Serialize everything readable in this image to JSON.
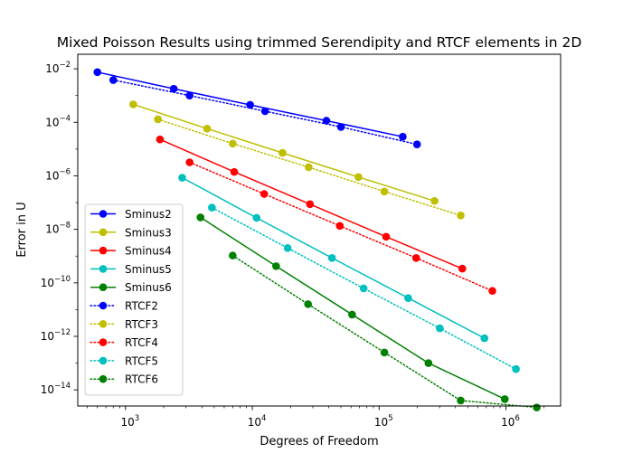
{
  "chart_data": {
    "type": "line",
    "title": "Mixed Poisson Results using trimmed Serendipity and RTCF elements in 2D",
    "xlabel": "Degrees of Freedom",
    "ylabel": "Error in U",
    "xscale": "log",
    "yscale": "log",
    "xlim": [
      420,
      2700000
    ],
    "ylim": [
      2.5e-15,
      0.035
    ],
    "x_ticks": [
      {
        "value": 1000,
        "base": "10",
        "exp": "3"
      },
      {
        "value": 10000,
        "base": "10",
        "exp": "4"
      },
      {
        "value": 100000,
        "base": "10",
        "exp": "5"
      },
      {
        "value": 1000000,
        "base": "10",
        "exp": "6"
      }
    ],
    "y_ticks": [
      {
        "value": 0.01,
        "base": "10",
        "exp": "−2"
      },
      {
        "value": 0.0001,
        "base": "10",
        "exp": "−4"
      },
      {
        "value": 1e-06,
        "base": "10",
        "exp": "−6"
      },
      {
        "value": 1e-08,
        "base": "10",
        "exp": "−8"
      },
      {
        "value": 1e-10,
        "base": "10",
        "exp": "−10"
      },
      {
        "value": 1e-12,
        "base": "10",
        "exp": "−12"
      },
      {
        "value": 1e-14,
        "base": "10",
        "exp": "−14"
      }
    ],
    "grid": false,
    "legend": "lower-left",
    "series": [
      {
        "name": "Sminus2",
        "color": "#0000ff",
        "style": "solid",
        "x": [
          600,
          2400,
          9600,
          38400,
          153600
        ],
        "y": [
          0.0075,
          0.0018,
          0.00045,
          0.000115,
          2.9e-05
        ]
      },
      {
        "name": "Sminus3",
        "color": "#bfbf00",
        "style": "solid",
        "x": [
          1150,
          4400,
          17300,
          68700,
          273600
        ],
        "y": [
          0.00047,
          5.8e-05,
          7.2e-06,
          9e-07,
          1.15e-07
        ]
      },
      {
        "name": "Sminus4",
        "color": "#ff0000",
        "style": "solid",
        "x": [
          1870,
          7200,
          28500,
          113600,
          453000
        ],
        "y": [
          2.3e-05,
          1.4e-06,
          8.7e-08,
          5.3e-09,
          3.4e-10
        ]
      },
      {
        "name": "Sminus5",
        "color": "#00bfbf",
        "style": "solid",
        "x": [
          2800,
          10800,
          42500,
          169500,
          677000
        ],
        "y": [
          8.5e-07,
          2.7e-08,
          8.5e-10,
          2.7e-11,
          8.5e-13
        ]
      },
      {
        "name": "Sminus6",
        "color": "#008000",
        "style": "solid",
        "x": [
          3900,
          15400,
          61200,
          245000,
          980000
        ],
        "y": [
          2.8e-08,
          4.2e-10,
          6.5e-12,
          1e-13,
          4.5e-15
        ]
      },
      {
        "name": "RTCF2",
        "color": "#0000ff",
        "style": "dotted",
        "x": [
          800,
          3200,
          12600,
          50000,
          199000
        ],
        "y": [
          0.0038,
          0.001,
          0.00026,
          6.7e-05,
          1.5e-05
        ]
      },
      {
        "name": "RTCF3",
        "color": "#bfbf00",
        "style": "dotted",
        "x": [
          1800,
          7000,
          27800,
          110000,
          440000
        ],
        "y": [
          0.00013,
          1.6e-05,
          2.1e-06,
          2.6e-07,
          3.3e-08
        ]
      },
      {
        "name": "RTCF4",
        "color": "#ff0000",
        "style": "dotted",
        "x": [
          3200,
          12400,
          49000,
          196000,
          782000
        ],
        "y": [
          3.2e-06,
          2.1e-07,
          1.35e-08,
          8.5e-10,
          5e-11
        ]
      },
      {
        "name": "RTCF5",
        "color": "#00bfbf",
        "style": "dotted",
        "x": [
          4800,
          19000,
          75500,
          301000,
          1200000
        ],
        "y": [
          6.5e-08,
          2e-09,
          6.2e-11,
          2e-12,
          6e-14
        ]
      },
      {
        "name": "RTCF6",
        "color": "#008000",
        "style": "dotted",
        "x": [
          7000,
          27500,
          110000,
          440000,
          1750000
        ],
        "y": [
          1.05e-09,
          1.6e-11,
          2.5e-13,
          4e-15,
          2.2e-15
        ]
      }
    ]
  }
}
